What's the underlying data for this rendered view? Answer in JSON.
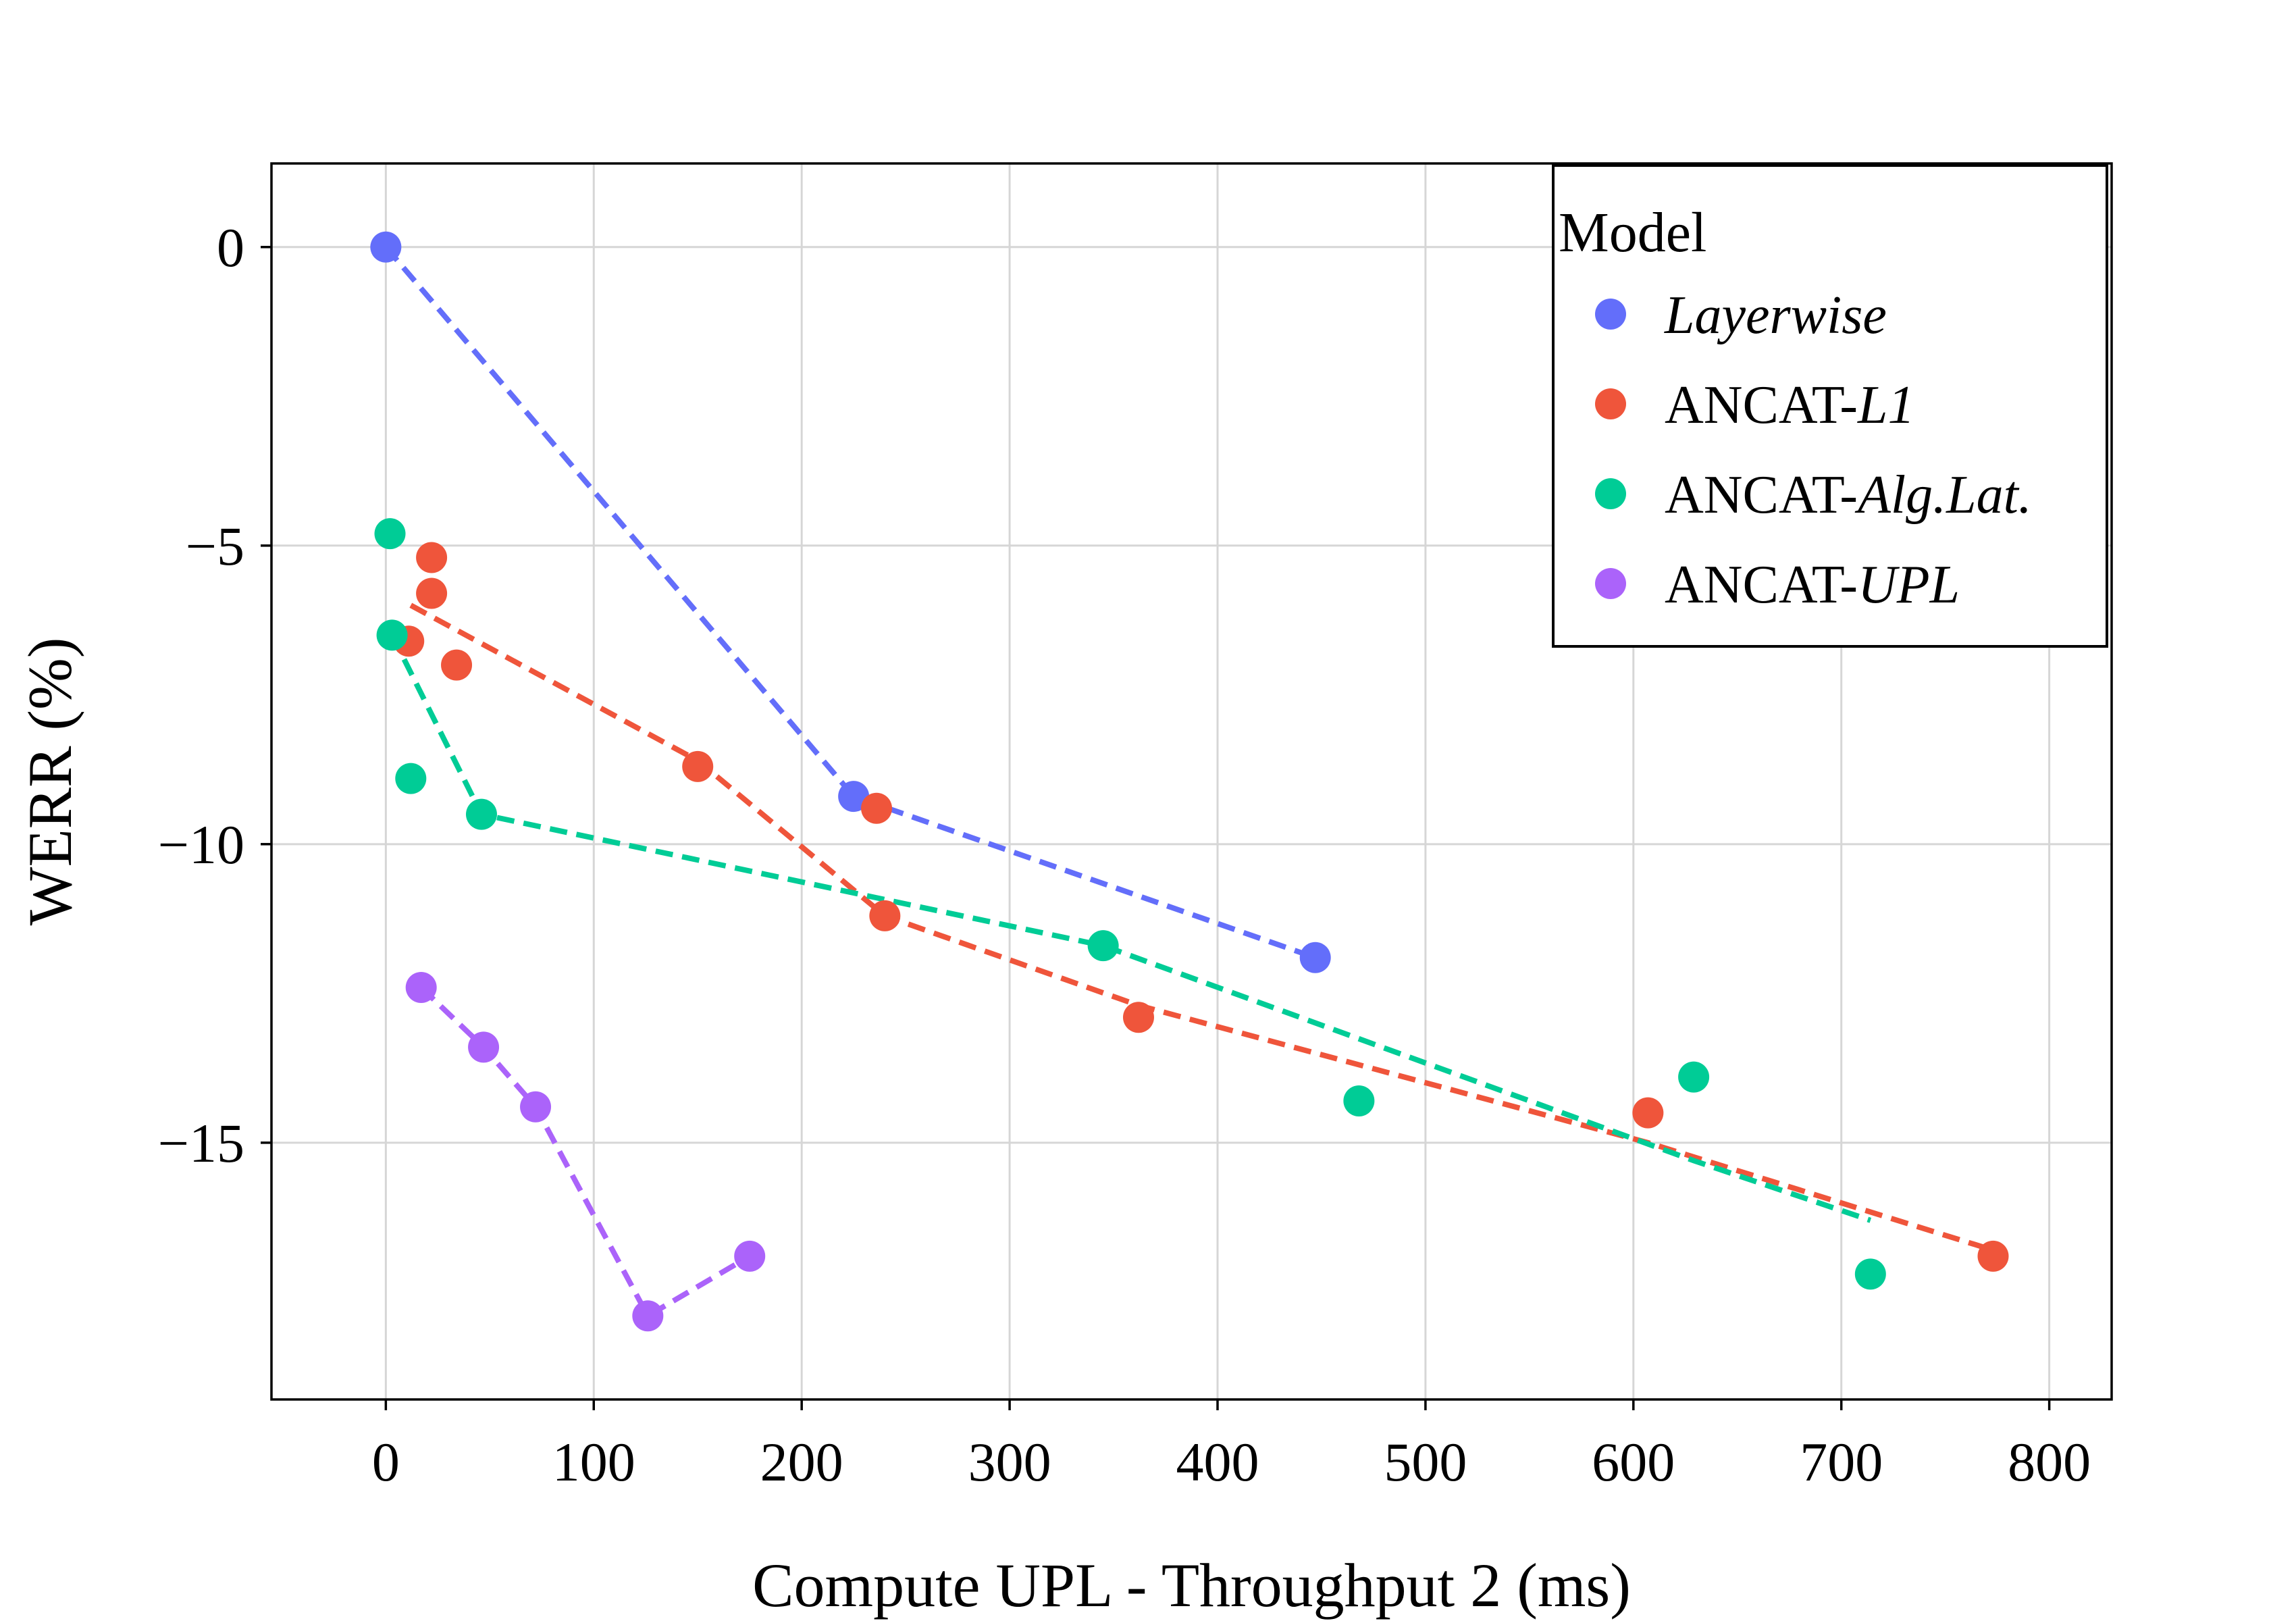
{
  "chart_data": {
    "type": "scatter",
    "title": "",
    "xlabel": "Compute UPL - Throughput 2 (ms)",
    "ylabel": "WERR (%)",
    "xlim": [
      -55,
      830
    ],
    "ylim": [
      -19.3,
      1.4
    ],
    "xticks": [
      0,
      100,
      200,
      300,
      400,
      500,
      600,
      700,
      800
    ],
    "yticks": [
      0,
      -5,
      -10,
      -15
    ],
    "ytick_labels": [
      "0",
      "−5",
      "−10",
      "−15"
    ],
    "grid": true,
    "legend": {
      "title": "Model",
      "position": "top-right"
    },
    "series": [
      {
        "name": "Layerwise",
        "prefix": "",
        "italic": "Layerwise",
        "color": "#636efa",
        "points": [
          [
            0,
            0
          ],
          [
            225,
            -9.2
          ],
          [
            447,
            -11.9
          ]
        ],
        "trend": [
          [
            0,
            0
          ],
          [
            225,
            -9.2
          ],
          [
            447,
            -11.9
          ]
        ]
      },
      {
        "name": "ANCAT-L1",
        "prefix": "ANCAT-",
        "italic": "L1",
        "color": "#ef553b",
        "points": [
          [
            22,
            -5.2
          ],
          [
            22,
            -5.8
          ],
          [
            11,
            -6.6
          ],
          [
            34,
            -7.0
          ],
          [
            150,
            -8.7
          ],
          [
            236,
            -9.4
          ],
          [
            240,
            -11.2
          ],
          [
            362,
            -12.9
          ],
          [
            607,
            -14.5
          ],
          [
            773,
            -16.9
          ]
        ],
        "trend": [
          [
            12,
            -6.0
          ],
          [
            150,
            -8.6
          ],
          [
            240,
            -11.2
          ],
          [
            362,
            -12.7
          ],
          [
            607,
            -15.0
          ],
          [
            773,
            -16.8
          ]
        ]
      },
      {
        "name": "ANCAT-Alg.Lat.",
        "prefix": "ANCAT-",
        "italic": "Alg.Lat.",
        "color": "#00cc96",
        "points": [
          [
            2,
            -4.8
          ],
          [
            3,
            -6.5
          ],
          [
            12,
            -8.9
          ],
          [
            46,
            -9.5
          ],
          [
            345,
            -11.7
          ],
          [
            468,
            -14.3
          ],
          [
            629,
            -13.9
          ],
          [
            714,
            -17.2
          ]
        ],
        "trend": [
          [
            3,
            -6.5
          ],
          [
            46,
            -9.5
          ],
          [
            345,
            -11.7
          ],
          [
            629,
            -15.3
          ],
          [
            714,
            -16.3
          ]
        ]
      },
      {
        "name": "ANCAT-UPL",
        "prefix": "ANCAT-",
        "italic": "UPL",
        "color": "#ab63fa",
        "points": [
          [
            17,
            -12.4
          ],
          [
            47,
            -13.4
          ],
          [
            72,
            -14.4
          ],
          [
            126,
            -17.9
          ],
          [
            175,
            -16.9
          ]
        ],
        "trend": [
          [
            17,
            -12.4
          ],
          [
            47,
            -13.4
          ],
          [
            72,
            -14.4
          ],
          [
            126,
            -17.9
          ],
          [
            175,
            -16.9
          ]
        ]
      }
    ]
  }
}
